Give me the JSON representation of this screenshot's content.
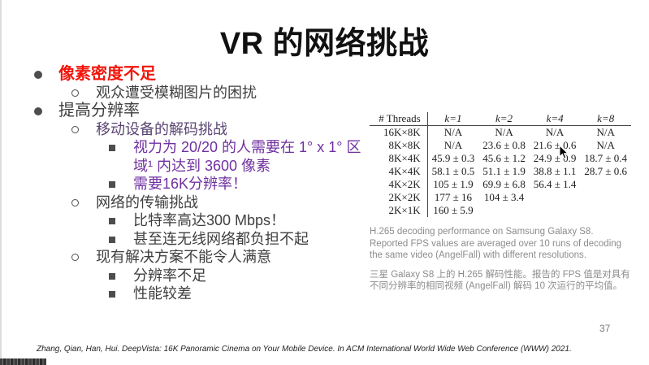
{
  "slide": {
    "title": "VR 的网络挑战",
    "page_number": "37",
    "footer": "Zhang, Qian, Han, Hui. DeepVista: 16K Panoramic Cinema on Your Mobile Device. In ACM International World Wide Web Conference (WWW) 2021.",
    "colors": {
      "emphasis_red": "#f2150a",
      "emphasis_purple": "#7030a0",
      "body_gray": "#3f3f3f",
      "caption_gray": "#8c8c8c"
    }
  },
  "bullets": [
    {
      "level": 1,
      "marker": "disc",
      "text": "像素密度不足",
      "color": "#f2150a",
      "bold": true
    },
    {
      "level": 2,
      "marker": "circle",
      "text": "观众遭受模糊图片的困扰",
      "color": "#3f3f3f",
      "bold": false
    },
    {
      "level": 1,
      "marker": "disc",
      "text": "提高分辨率",
      "color": "#3f3f3f",
      "bold": false
    },
    {
      "level": 2,
      "marker": "circle",
      "text": "移动设备的解码挑战",
      "color": "#5a4472",
      "bold": false
    },
    {
      "level": 3,
      "marker": "square",
      "text": "视力为 20/20 的人需要在 1° x 1° 区域¹ 内达到 3600 像素",
      "color": "#7030a0",
      "bold": false
    },
    {
      "level": 3,
      "marker": "square",
      "text": "需要16K分辨率！",
      "color": "#7030a0",
      "bold": false
    },
    {
      "level": 2,
      "marker": "circle",
      "text": "网络的传输挑战",
      "color": "#3f3f3f",
      "bold": false
    },
    {
      "level": 3,
      "marker": "square",
      "text": "比特率高达300 Mbps！",
      "color": "#3f3f3f",
      "bold": false
    },
    {
      "level": 3,
      "marker": "square",
      "text": "甚至连无线网络都负担不起",
      "color": "#3f3f3f",
      "bold": false
    },
    {
      "level": 2,
      "marker": "circle",
      "text": "现有解决方案不能令人满意",
      "color": "#3f3f3f",
      "bold": false
    },
    {
      "level": 3,
      "marker": "square",
      "text": "分辨率不足",
      "color": "#3f3f3f",
      "bold": false
    },
    {
      "level": 3,
      "marker": "square",
      "text": "性能较差",
      "color": "#3f3f3f",
      "bold": false
    }
  ],
  "table": {
    "header": [
      "# Threads",
      "k=1",
      "k=2",
      "k=4",
      "k=8"
    ],
    "rows": [
      [
        "16K×8K",
        "N/A",
        "N/A",
        "N/A",
        "N/A"
      ],
      [
        "8K×8K",
        "N/A",
        "23.6 ± 0.8",
        "21.6 ± 0.6",
        "N/A"
      ],
      [
        "8K×4K",
        "45.9 ± 0.3",
        "45.6 ± 1.2",
        "24.9 ± 0.9",
        "18.7 ± 0.4"
      ],
      [
        "4K×4K",
        "58.1 ± 0.5",
        "51.1 ± 1.9",
        "38.8 ± 1.1",
        "28.7 ± 0.6"
      ],
      [
        "4K×2K",
        "105 ± 1.9",
        "69.9 ± 6.8",
        "56.4 ± 1.4",
        ""
      ],
      [
        "2K×2K",
        "177 ± 16",
        "104 ± 3.4",
        "",
        ""
      ],
      [
        "2K×1K",
        "160 ± 5.9",
        "",
        "",
        ""
      ]
    ],
    "caption_en": "H.265 decoding performance on Samsung Galaxy S8. Reported FPS values are averaged over 10 runs of decoding the same video (AngelFall) with different resolutions.",
    "caption_zh": "三星 Galaxy S8 上的 H.265 解码性能。报告的 FPS 值是对具有不同分辨率的相同视频 (AngelFall) 解码 10 次运行的平均值。"
  }
}
